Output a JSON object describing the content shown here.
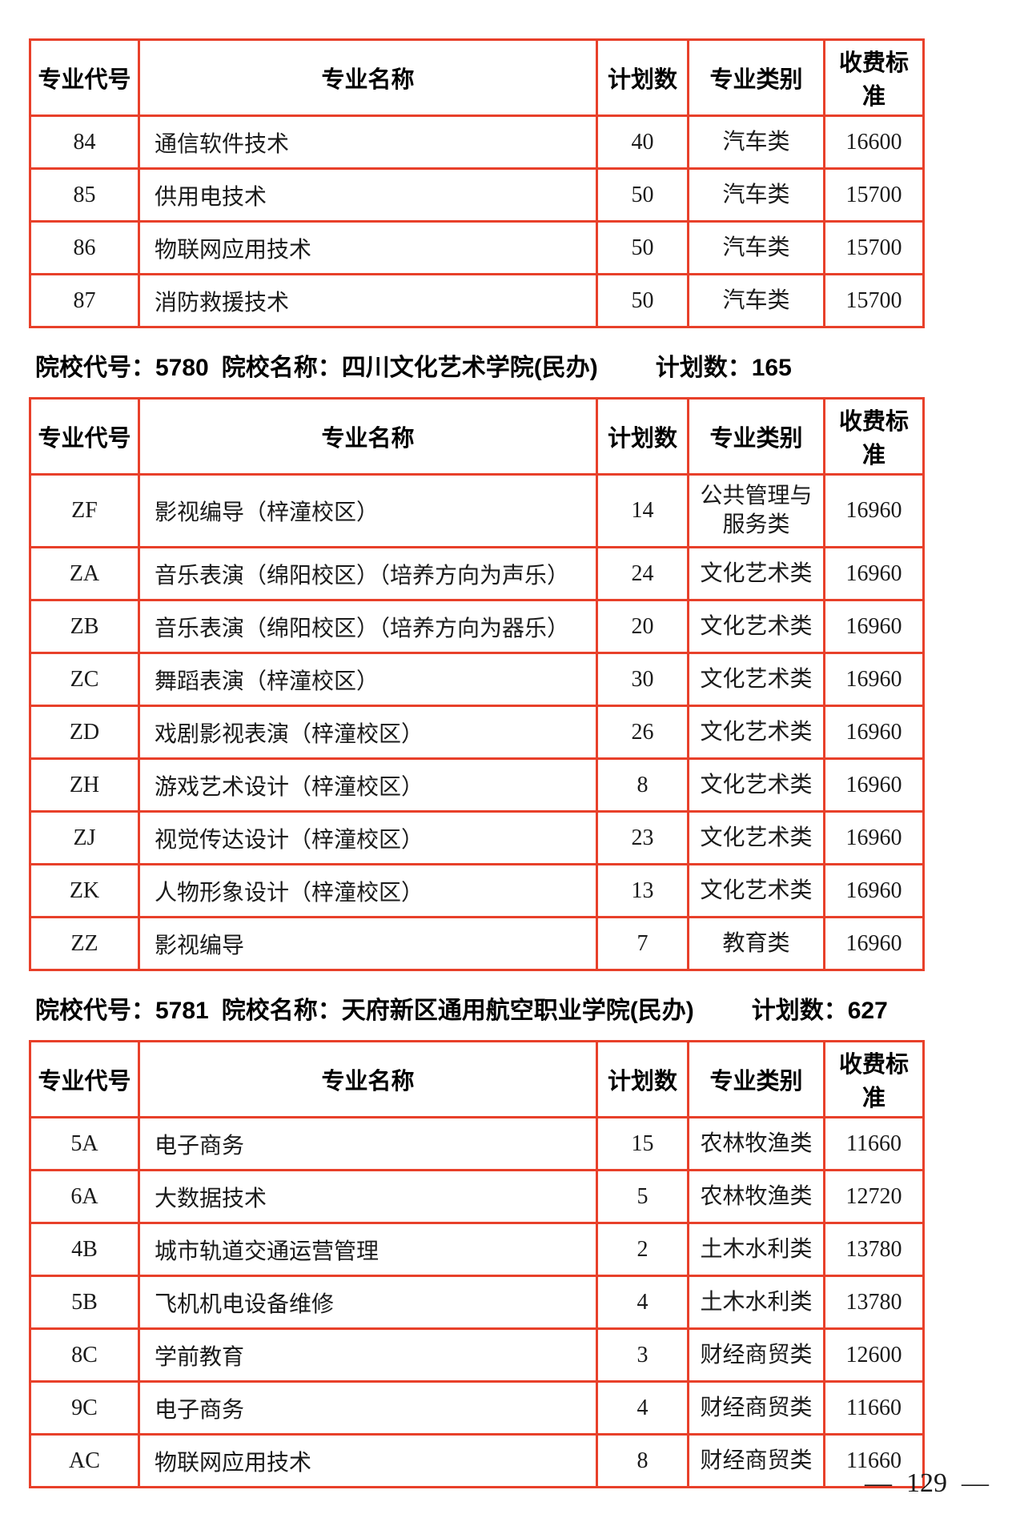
{
  "colors": {
    "table_border": "#e8402a",
    "text": "#111111"
  },
  "table_columns": [
    "专业代号",
    "专业名称",
    "计划数",
    "专业类别",
    "收费标准"
  ],
  "section_header_labels": {
    "code": "院校代号：",
    "name": "院校名称：",
    "plan": "计划数："
  },
  "sections": [
    {
      "rows": [
        {
          "code": "84",
          "name": "通信软件技术",
          "plan": "40",
          "category": "汽车类",
          "fee": "16600"
        },
        {
          "code": "85",
          "name": "供用电技术",
          "plan": "50",
          "category": "汽车类",
          "fee": "15700"
        },
        {
          "code": "86",
          "name": "物联网应用技术",
          "plan": "50",
          "category": "汽车类",
          "fee": "15700"
        },
        {
          "code": "87",
          "name": "消防救援技术",
          "plan": "50",
          "category": "汽车类",
          "fee": "15700"
        }
      ]
    },
    {
      "code": "5780",
      "name": "四川文化艺术学院(民办)",
      "plan": "165",
      "rows": [
        {
          "code": "ZF",
          "name": "影视编导（梓潼校区）",
          "plan": "14",
          "category": "公共管理与\n服务类",
          "fee": "16960"
        },
        {
          "code": "ZA",
          "name": "音乐表演（绵阳校区）（培养方向为声乐）",
          "plan": "24",
          "category": "文化艺术类",
          "fee": "16960"
        },
        {
          "code": "ZB",
          "name": "音乐表演（绵阳校区）（培养方向为器乐）",
          "plan": "20",
          "category": "文化艺术类",
          "fee": "16960"
        },
        {
          "code": "ZC",
          "name": "舞蹈表演（梓潼校区）",
          "plan": "30",
          "category": "文化艺术类",
          "fee": "16960"
        },
        {
          "code": "ZD",
          "name": "戏剧影视表演（梓潼校区）",
          "plan": "26",
          "category": "文化艺术类",
          "fee": "16960"
        },
        {
          "code": "ZH",
          "name": "游戏艺术设计（梓潼校区）",
          "plan": "8",
          "category": "文化艺术类",
          "fee": "16960"
        },
        {
          "code": "ZJ",
          "name": "视觉传达设计（梓潼校区）",
          "plan": "23",
          "category": "文化艺术类",
          "fee": "16960"
        },
        {
          "code": "ZK",
          "name": "人物形象设计（梓潼校区）",
          "plan": "13",
          "category": "文化艺术类",
          "fee": "16960"
        },
        {
          "code": "ZZ",
          "name": "影视编导",
          "plan": "7",
          "category": "教育类",
          "fee": "16960"
        }
      ]
    },
    {
      "code": "5781",
      "name": "天府新区通用航空职业学院(民办)",
      "plan": "627",
      "rows": [
        {
          "code": "5A",
          "name": "电子商务",
          "plan": "15",
          "category": "农林牧渔类",
          "fee": "11660"
        },
        {
          "code": "6A",
          "name": "大数据技术",
          "plan": "5",
          "category": "农林牧渔类",
          "fee": "12720"
        },
        {
          "code": "4B",
          "name": "城市轨道交通运营管理",
          "plan": "2",
          "category": "土木水利类",
          "fee": "13780"
        },
        {
          "code": "5B",
          "name": "飞机机电设备维修",
          "plan": "4",
          "category": "土木水利类",
          "fee": "13780"
        },
        {
          "code": "8C",
          "name": "学前教育",
          "plan": "3",
          "category": "财经商贸类",
          "fee": "12600"
        },
        {
          "code": "9C",
          "name": "电子商务",
          "plan": "4",
          "category": "财经商贸类",
          "fee": "11660"
        },
        {
          "code": "AC",
          "name": "物联网应用技术",
          "plan": "8",
          "category": "财经商贸类",
          "fee": "11660"
        }
      ]
    }
  ],
  "footer": {
    "dash_left": "—",
    "page_number": "129",
    "dash_right": "—"
  }
}
